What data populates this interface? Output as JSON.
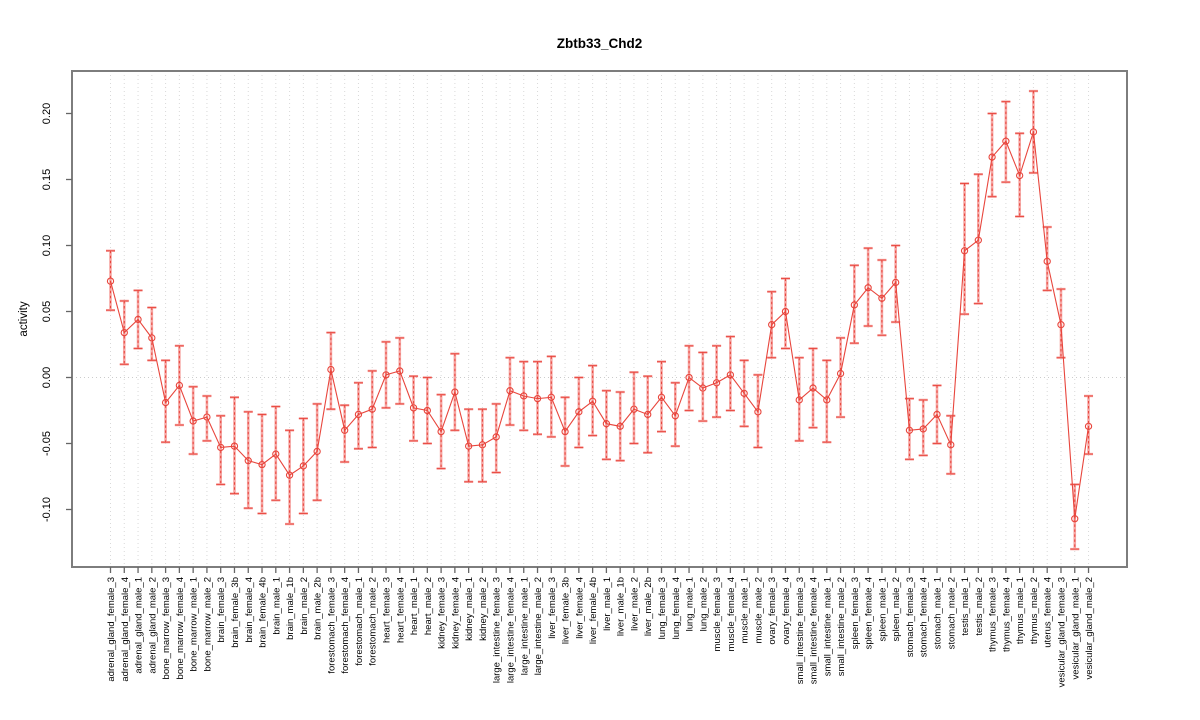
{
  "figure": {
    "title": "Zbtb33_Chd2",
    "ylabel": "activity"
  },
  "chart_data": {
    "type": "line",
    "title": "Zbtb33_Chd2",
    "xlabel": "",
    "ylabel": "activity",
    "ylim": [
      -0.145,
      0.232
    ],
    "yticks": [
      -0.1,
      -0.05,
      0.0,
      0.05,
      0.1,
      0.15,
      0.2
    ],
    "ytick_labels": [
      "-0.10",
      "-0.05",
      "0.00",
      "0.05",
      "0.10",
      "0.15",
      "0.20"
    ],
    "grid": "vertical dotted line per category",
    "zero_line": "dotted horizontal at 0.00",
    "legend_position": "none",
    "marker": "open-circle",
    "line_style": "solid connector between means, dashed vertical error bars with flat caps",
    "categories": [
      "adrenal_gland_female_3",
      "adrenal_gland_female_4",
      "adrenal_gland_male_1",
      "adrenal_gland_male_2",
      "bone_marrow_female_3",
      "bone_marrow_female_4",
      "bone_marrow_male_1",
      "bone_marrow_male_2",
      "brain_female_3",
      "brain_female_3b",
      "brain_female_4",
      "brain_female_4b",
      "brain_male_1",
      "brain_male_1b",
      "brain_male_2",
      "brain_male_2b",
      "forestomach_female_3",
      "forestomach_female_4",
      "forestomach_male_1",
      "forestomach_male_2",
      "heart_female_3",
      "heart_female_4",
      "heart_male_1",
      "heart_male_2",
      "kidney_female_3",
      "kidney_female_4",
      "kidney_male_1",
      "kidney_male_2",
      "large_intestine_female_3",
      "large_intestine_female_4",
      "large_intestine_male_1",
      "large_intestine_male_2",
      "liver_female_3",
      "liver_female_3b",
      "liver_female_4",
      "liver_female_4b",
      "liver_male_1",
      "liver_male_1b",
      "liver_male_2",
      "liver_male_2b",
      "lung_female_3",
      "lung_female_4",
      "lung_male_1",
      "lung_male_2",
      "muscle_female_3",
      "muscle_female_4",
      "muscle_male_1",
      "muscle_male_2",
      "ovary_female_3",
      "ovary_female_4",
      "small_intestine_female_3",
      "small_intestine_female_4",
      "small_intestine_male_1",
      "small_intestine_male_2",
      "spleen_female_3",
      "spleen_female_4",
      "spleen_male_1",
      "spleen_male_2",
      "stomach_female_3",
      "stomach_female_4",
      "stomach_male_1",
      "stomach_male_2",
      "testis_male_1",
      "testis_male_2",
      "thymus_female_3",
      "thymus_female_4",
      "thymus_male_1",
      "thymus_male_2",
      "uterus_female_4",
      "vesicular_gland_female_3",
      "vesicular_gland_male_1",
      "vesicular_gland_male_2"
    ],
    "series": [
      {
        "name": "activity",
        "values": [
          0.073,
          0.034,
          0.044,
          0.03,
          -0.019,
          -0.006,
          -0.033,
          -0.03,
          -0.053,
          -0.052,
          -0.063,
          -0.066,
          -0.058,
          -0.074,
          -0.067,
          -0.056,
          0.006,
          -0.04,
          -0.028,
          -0.024,
          0.002,
          0.005,
          -0.023,
          -0.025,
          -0.041,
          -0.011,
          -0.052,
          -0.051,
          -0.045,
          -0.01,
          -0.014,
          -0.016,
          -0.015,
          -0.041,
          -0.026,
          -0.018,
          -0.035,
          -0.037,
          -0.024,
          -0.028,
          -0.015,
          -0.029,
          0.0,
          -0.008,
          -0.004,
          0.002,
          -0.012,
          -0.026,
          0.04,
          0.05,
          -0.017,
          -0.008,
          -0.017,
          0.003,
          0.055,
          0.068,
          0.06,
          0.072,
          -0.04,
          -0.039,
          -0.028,
          -0.051,
          0.096,
          0.104,
          0.167,
          0.179,
          0.153,
          0.186,
          0.088,
          0.04,
          -0.107,
          -0.037
        ],
        "err_high": [
          0.096,
          0.058,
          0.066,
          0.053,
          0.013,
          0.024,
          -0.007,
          -0.014,
          -0.029,
          -0.015,
          -0.026,
          -0.028,
          -0.022,
          -0.04,
          -0.031,
          -0.02,
          0.034,
          -0.021,
          -0.004,
          0.005,
          0.027,
          0.03,
          0.001,
          0.0,
          -0.013,
          0.018,
          -0.024,
          -0.024,
          -0.02,
          0.015,
          0.012,
          0.012,
          0.016,
          -0.015,
          0.0,
          0.009,
          -0.01,
          -0.011,
          0.004,
          0.001,
          0.012,
          -0.004,
          0.024,
          0.019,
          0.024,
          0.031,
          0.013,
          0.002,
          0.065,
          0.075,
          0.015,
          0.022,
          0.013,
          0.03,
          0.085,
          0.098,
          0.089,
          0.1,
          -0.016,
          -0.017,
          -0.006,
          -0.029,
          0.147,
          0.154,
          0.2,
          0.209,
          0.185,
          0.217,
          0.114,
          0.067,
          -0.081,
          -0.014
        ],
        "err_low": [
          0.051,
          0.01,
          0.022,
          0.013,
          -0.049,
          -0.036,
          -0.058,
          -0.048,
          -0.081,
          -0.088,
          -0.099,
          -0.103,
          -0.093,
          -0.111,
          -0.103,
          -0.093,
          -0.024,
          -0.064,
          -0.054,
          -0.053,
          -0.023,
          -0.02,
          -0.048,
          -0.05,
          -0.069,
          -0.04,
          -0.079,
          -0.079,
          -0.072,
          -0.036,
          -0.04,
          -0.043,
          -0.045,
          -0.067,
          -0.053,
          -0.044,
          -0.062,
          -0.063,
          -0.05,
          -0.057,
          -0.041,
          -0.052,
          -0.025,
          -0.033,
          -0.03,
          -0.025,
          -0.037,
          -0.053,
          0.015,
          0.022,
          -0.048,
          -0.038,
          -0.049,
          -0.03,
          0.026,
          0.039,
          0.032,
          0.042,
          -0.062,
          -0.059,
          -0.05,
          -0.073,
          0.048,
          0.056,
          0.137,
          0.148,
          0.122,
          0.155,
          0.066,
          0.015,
          -0.13,
          -0.058
        ]
      }
    ],
    "colors": {
      "point_line_red": "#e8453c",
      "error_bar_salmon": "#f6a5a2",
      "grid_gray": "#d9d9d9",
      "zero_line_gray": "#cccccc",
      "frame_gray": "#7d7d7d",
      "tick_gray": "#666666",
      "text_black": "#000000"
    }
  }
}
